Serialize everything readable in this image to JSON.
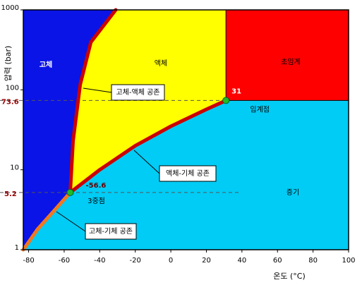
{
  "chart_data": {
    "type": "phase",
    "x_label": "온도 (°C)",
    "y_label": "압력 (bar)",
    "xlim": [
      -83,
      100
    ],
    "ylim": [
      1,
      1000
    ],
    "y_log": true,
    "xticks": [
      -80,
      -60,
      -40,
      -20,
      0,
      20,
      40,
      60,
      80,
      100
    ],
    "yticks": [
      1,
      10,
      100,
      1000
    ],
    "regions": [
      {
        "name": "고체",
        "color": "#0a14e6"
      },
      {
        "name": "액체",
        "color": "#ffff00"
      },
      {
        "name": "초임계",
        "color": "#ff0000"
      },
      {
        "name": "증기",
        "color": "#00ccf5"
      }
    ],
    "curves": [
      {
        "name": "고체-액체 공존",
        "color": "#cc0000",
        "x": [
          -56.6,
          -55,
          -51,
          -45,
          -31
        ],
        "y": [
          5.2,
          23,
          116,
          394,
          1000
        ]
      },
      {
        "name": "액체-기체 공존",
        "color": "#cc0000",
        "x": [
          -56.6,
          -40,
          -20,
          0,
          20,
          31
        ],
        "y": [
          5.2,
          10,
          20,
          35,
          57,
          73.6
        ]
      },
      {
        "name": "고체-기체 공존",
        "color": "#f07820",
        "x": [
          -83,
          -75,
          -65,
          -56.6
        ],
        "y": [
          1,
          1.8,
          3.2,
          5.2
        ]
      }
    ],
    "triple_point": {
      "name": "3중점",
      "x": -56.6,
      "y": 5.2
    },
    "critical_point": {
      "name": "임계점",
      "x": 31,
      "y": 73.6
    },
    "point_color": "#22bb22"
  }
}
